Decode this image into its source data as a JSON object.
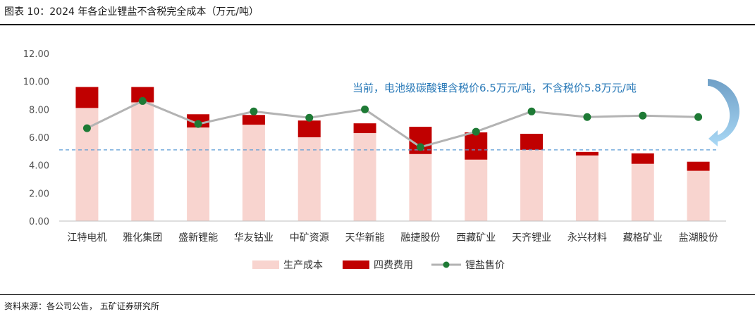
{
  "figure": {
    "title": "图表 10：2024 年各企业锂盐不含税完全成本（万元/吨）",
    "source": "资料来源：各公司公告，  五矿证券研究所"
  },
  "chart_data": {
    "type": "bar",
    "stacked": true,
    "categories": [
      "江特电机",
      "雅化集团",
      "盛新锂能",
      "华友钴业",
      "中矿资源",
      "天华新能",
      "融捷股份",
      "西藏矿业",
      "天齐锂业",
      "永兴材料",
      "藏格矿业",
      "盐湖股份"
    ],
    "series": [
      {
        "name": "生产成本",
        "kind": "bar",
        "color": "#f8d4cf",
        "values": [
          8.1,
          8.5,
          6.7,
          6.9,
          6.0,
          6.3,
          4.8,
          4.4,
          5.1,
          4.7,
          4.1,
          3.6
        ]
      },
      {
        "name": "四费费用",
        "kind": "bar",
        "color": "#c00000",
        "values": [
          1.5,
          1.1,
          0.95,
          0.7,
          1.2,
          0.7,
          1.95,
          1.95,
          1.15,
          0.25,
          0.75,
          0.65
        ]
      },
      {
        "name": "锂盐售价",
        "kind": "line",
        "color": "#b3b3b3",
        "marker_color": "#1e7a35",
        "values": [
          6.65,
          8.6,
          6.95,
          7.85,
          7.4,
          8.0,
          5.3,
          6.4,
          7.85,
          7.45,
          7.55,
          7.45
        ]
      }
    ],
    "y_ticks": [
      "0.00",
      "2.00",
      "4.00",
      "6.00",
      "8.00",
      "10.00",
      "12.00"
    ],
    "ylim": [
      0,
      12
    ],
    "reference_line": {
      "value": 5.1,
      "color": "#5b9bd5",
      "style": "dashed"
    },
    "annotation": "当前，电池级碳酸锂含税价6.5万元/吨，不含税价5.8万元/吨",
    "annotation_color": "#2a7ab8",
    "legend_position": "bottom-center",
    "grid": false
  }
}
